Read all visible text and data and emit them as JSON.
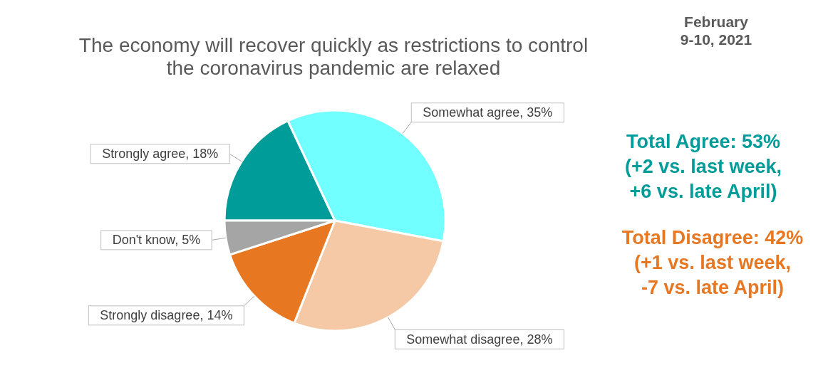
{
  "chart_data": {
    "type": "pie",
    "title": "The economy will recover quickly as restrictions to control the coronavirus pandemic are relaxed",
    "categories": [
      "Strongly agree",
      "Somewhat agree",
      "Somewhat disagree",
      "Strongly disagree",
      "Don't know"
    ],
    "values": [
      18,
      35,
      28,
      14,
      5
    ],
    "colors": [
      "#009c99",
      "#71ffff",
      "#f5c9a5",
      "#e87722",
      "#a5a5a5"
    ],
    "value_labels": [
      "18%",
      "35%",
      "28%",
      "14%",
      "5%"
    ],
    "annotations": [
      "February\n9-10, 2021",
      "Total Agree: 53%\n(+2 vs. last week,\n+6 vs. late April)",
      "Total Disagree: 42%\n(+1 vs. last week,\n-7 vs. late April)"
    ]
  }
}
